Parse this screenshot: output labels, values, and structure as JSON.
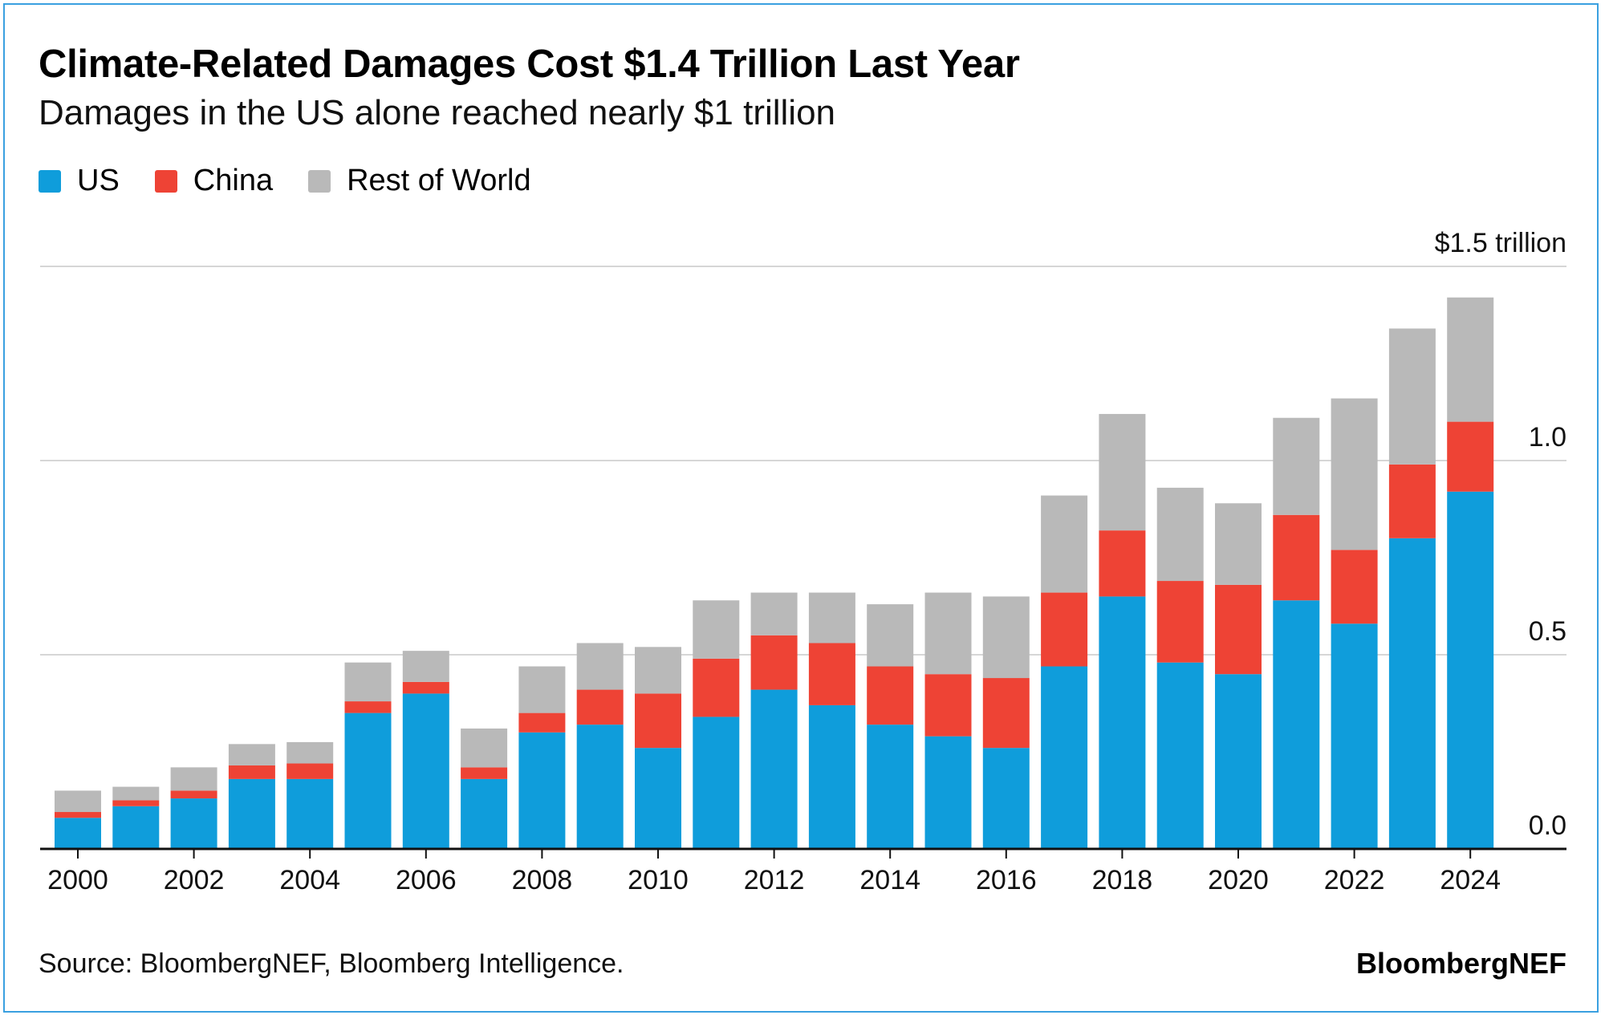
{
  "title": "Climate-Related Damages Cost $1.4 Trillion Last Year",
  "subtitle": "Damages in the US alone reached nearly $1 trillion",
  "legend": [
    {
      "name": "US",
      "color": "#0f9ddb"
    },
    {
      "name": "China",
      "color": "#ee4335"
    },
    {
      "name": "Rest of World",
      "color": "#b9b9b9"
    }
  ],
  "y_unit_label": "$1.5 trillion",
  "source": "Source: BloombergNEF, Bloomberg Intelligence.",
  "brand": "BloombergNEF",
  "chart_data": {
    "type": "bar",
    "stacked": true,
    "categories": [
      "2000",
      "2001",
      "2002",
      "2003",
      "2004",
      "2005",
      "2006",
      "2007",
      "2008",
      "2009",
      "2010",
      "2011",
      "2012",
      "2013",
      "2014",
      "2015",
      "2016",
      "2017",
      "2018",
      "2019",
      "2020",
      "2021",
      "2022",
      "2023",
      "2024"
    ],
    "x_tick_labels": [
      "2000",
      "2002",
      "2004",
      "2006",
      "2008",
      "2010",
      "2012",
      "2014",
      "2016",
      "2018",
      "2020",
      "2022",
      "2024"
    ],
    "series": [
      {
        "name": "US",
        "color": "#0f9ddb",
        "values": [
          0.08,
          0.11,
          0.13,
          0.18,
          0.18,
          0.35,
          0.4,
          0.18,
          0.3,
          0.32,
          0.26,
          0.34,
          0.41,
          0.37,
          0.32,
          0.29,
          0.26,
          0.47,
          0.65,
          0.48,
          0.45,
          0.64,
          0.58,
          0.8,
          0.92
        ]
      },
      {
        "name": "China",
        "color": "#ee4335",
        "values": [
          0.015,
          0.015,
          0.02,
          0.035,
          0.04,
          0.03,
          0.03,
          0.03,
          0.05,
          0.09,
          0.14,
          0.15,
          0.14,
          0.16,
          0.15,
          0.16,
          0.18,
          0.19,
          0.17,
          0.21,
          0.23,
          0.22,
          0.19,
          0.19,
          0.18
        ]
      },
      {
        "name": "Rest of World",
        "color": "#b9b9b9",
        "values": [
          0.055,
          0.035,
          0.06,
          0.055,
          0.055,
          0.1,
          0.08,
          0.1,
          0.12,
          0.12,
          0.12,
          0.15,
          0.11,
          0.13,
          0.16,
          0.21,
          0.21,
          0.25,
          0.3,
          0.24,
          0.21,
          0.25,
          0.39,
          0.35,
          0.32
        ]
      }
    ],
    "ylim": [
      0,
      1.5
    ],
    "y_ticks": [
      {
        "value": 0,
        "label": "0.0"
      },
      {
        "value": 0.5,
        "label": "0.5"
      },
      {
        "value": 1.0,
        "label": "1.0"
      },
      {
        "value": 1.5,
        "label": "$1.5 trillion"
      }
    ],
    "grid": true,
    "legend_position": "top-left"
  }
}
